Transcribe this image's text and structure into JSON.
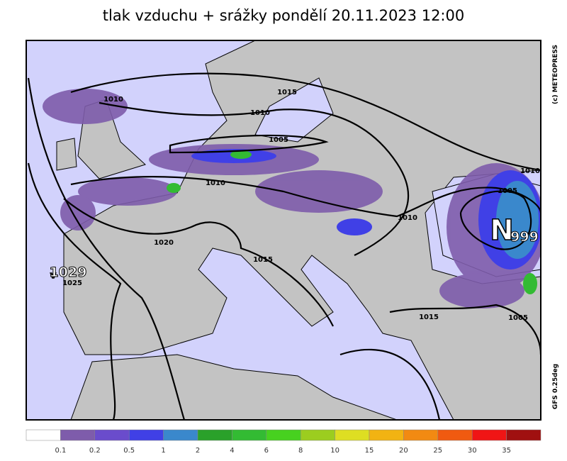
{
  "title": "tlak vzduchu + srážky pondělí 20.11.2023 12:00",
  "map": {
    "isobar_labels": [
      "1010",
      "1015",
      "1010",
      "1005",
      "1010",
      "1010",
      "1020",
      "1025",
      "1015",
      "1015",
      "1010",
      "1005",
      "1005"
    ],
    "high": {
      "letter": "V",
      "value": "1029"
    },
    "low": {
      "letter": "N",
      "value": "999"
    },
    "copyright": "(c) METEOPRESS",
    "model": "GFS 0.25deg"
  },
  "legend": {
    "colors": [
      "#ffffff",
      "#7e5cab",
      "#6a4ccc",
      "#4040e6",
      "#3a88cc",
      "#2aa12a",
      "#33bb33",
      "#47d11f",
      "#9ccd1f",
      "#dede22",
      "#f2b312",
      "#f28a12",
      "#f05a10",
      "#f01515",
      "#a01010"
    ],
    "ticks": [
      "0.1",
      "0.2",
      "0.5",
      "1",
      "2",
      "4",
      "6",
      "8",
      "10",
      "15",
      "20",
      "25",
      "30",
      "35"
    ]
  }
}
